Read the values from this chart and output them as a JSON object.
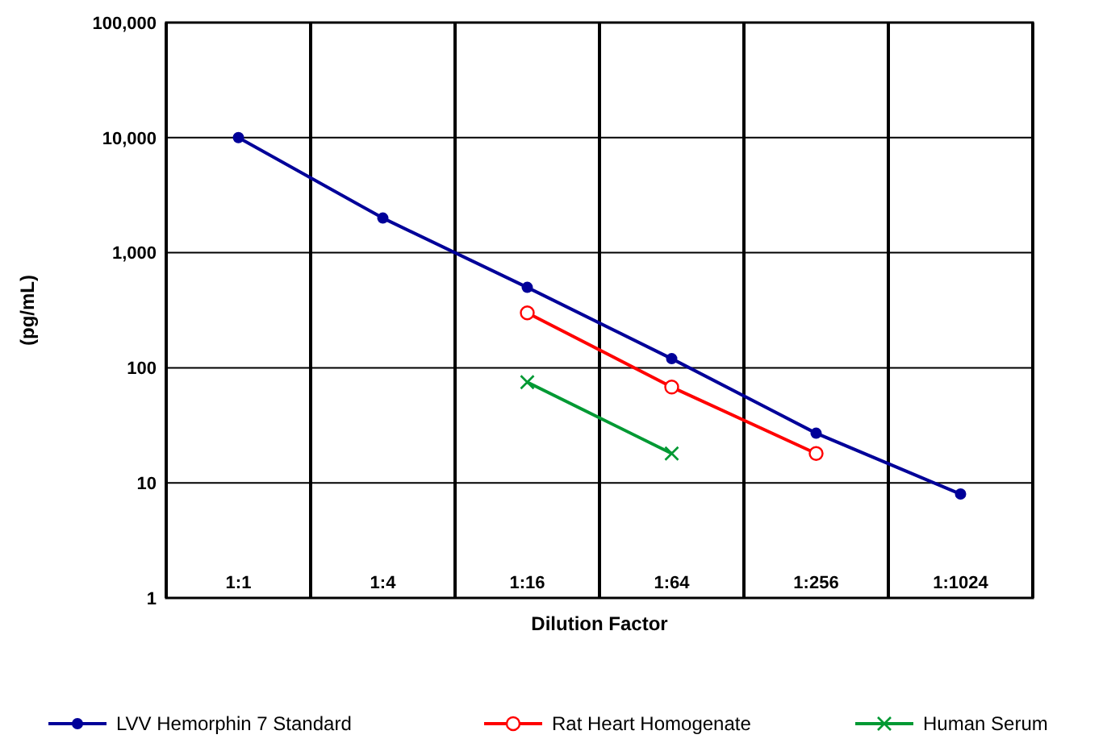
{
  "chart_data": {
    "type": "line",
    "xlabel": "Dilution Factor",
    "ylabel": "(pg/mL)",
    "categories": [
      "1:1",
      "1:4",
      "1:16",
      "1:64",
      "1:256",
      "1:1024"
    ],
    "log": true,
    "ylim": [
      1,
      100000
    ],
    "yticks": [
      1,
      10,
      100,
      {
        "value": 1000,
        "label": "1,000"
      },
      {
        "value": 10000,
        "label": "10,000"
      },
      {
        "value": 100000,
        "label": "100,000"
      }
    ],
    "grid": true,
    "legend": "bottom",
    "line_style": "solid",
    "series": [
      {
        "name": "LVV Hemorphin 7 Standard",
        "color": "#000099",
        "marker": "circle",
        "values": [
          10000,
          2000,
          500,
          120,
          27,
          8
        ]
      },
      {
        "name": "Rat Heart Homogenate",
        "color": "#ff0000",
        "marker": "open-circle",
        "values": [
          null,
          null,
          300,
          68,
          18,
          null
        ]
      },
      {
        "name": "Human Serum",
        "color": "#009933",
        "marker": "cross",
        "values": [
          null,
          null,
          75,
          18,
          null,
          null
        ]
      }
    ]
  }
}
